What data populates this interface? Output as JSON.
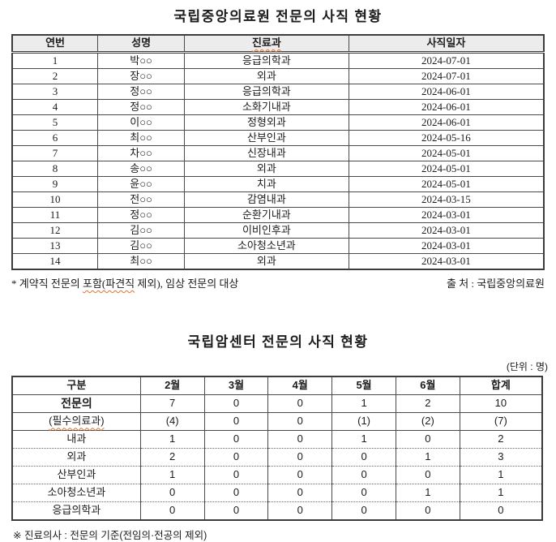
{
  "table1": {
    "title": "국립중앙의료원 전문의 사직 현황",
    "columns": [
      "연번",
      "성명",
      "진료과",
      "사직일자"
    ],
    "rows": [
      {
        "no": "1",
        "name": "박○○",
        "dept": "응급의학과",
        "date": "2024-07-01"
      },
      {
        "no": "2",
        "name": "장○○",
        "dept": "외과",
        "date": "2024-07-01"
      },
      {
        "no": "3",
        "name": "정○○",
        "dept": "응급의학과",
        "date": "2024-06-01"
      },
      {
        "no": "4",
        "name": "정○○",
        "dept": "소화기내과",
        "date": "2024-06-01"
      },
      {
        "no": "5",
        "name": "이○○",
        "dept": "정형외과",
        "date": "2024-06-01"
      },
      {
        "no": "6",
        "name": "최○○",
        "dept": "산부인과",
        "date": "2024-05-16"
      },
      {
        "no": "7",
        "name": "차○○",
        "dept": "신장내과",
        "date": "2024-05-01"
      },
      {
        "no": "8",
        "name": "송○○",
        "dept": "외과",
        "date": "2024-05-01"
      },
      {
        "no": "9",
        "name": "윤○○",
        "dept": "치과",
        "date": "2024-05-01"
      },
      {
        "no": "10",
        "name": "전○○",
        "dept": "감염내과",
        "date": "2024-03-15"
      },
      {
        "no": "11",
        "name": "정○○",
        "dept": "순환기내과",
        "date": "2024-03-01"
      },
      {
        "no": "12",
        "name": "김○○",
        "dept": "이비인후과",
        "date": "2024-03-01"
      },
      {
        "no": "13",
        "name": "김○○",
        "dept": "소아청소년과",
        "date": "2024-03-01"
      },
      {
        "no": "14",
        "name": "최○○",
        "dept": "외과",
        "date": "2024-03-01"
      }
    ],
    "note_prefix": "* 계약직 전문의 ",
    "note_wavy": "포함(파견직",
    "note_suffix": " 제외), 임상 전문의 대상",
    "source": "출 처 : 국립중앙의료원"
  },
  "table2": {
    "title": "국립암센터 전문의 사직 현황",
    "unit": "(단위 : 명)",
    "columns": [
      "구분",
      "2월",
      "3월",
      "4월",
      "5월",
      "6월",
      "합계"
    ],
    "rows": [
      {
        "label": "전문의",
        "values": [
          "7",
          "0",
          "0",
          "1",
          "2",
          "10"
        ]
      },
      {
        "label": "(필수의료과)",
        "values": [
          "(4)",
          "0",
          "0",
          "(1)",
          "(2)",
          "(7)"
        ]
      },
      {
        "label": "내과",
        "values": [
          "1",
          "0",
          "0",
          "1",
          "0",
          "2"
        ]
      },
      {
        "label": "외과",
        "values": [
          "2",
          "0",
          "0",
          "0",
          "1",
          "3"
        ]
      },
      {
        "label": "산부인과",
        "values": [
          "1",
          "0",
          "0",
          "0",
          "0",
          "1"
        ]
      },
      {
        "label": "소아청소년과",
        "values": [
          "0",
          "0",
          "0",
          "0",
          "1",
          "1"
        ]
      },
      {
        "label": "응급의학과",
        "values": [
          "0",
          "0",
          "0",
          "0",
          "0",
          "0"
        ]
      }
    ],
    "footnote": "※ 진료의사 : 전문의 기준(전임의·전공의 제외)"
  },
  "colors": {
    "header_bg": "#ececec",
    "border": "#4a4a4a",
    "squiggle": "#e2702f",
    "text": "#1c1c1c"
  }
}
